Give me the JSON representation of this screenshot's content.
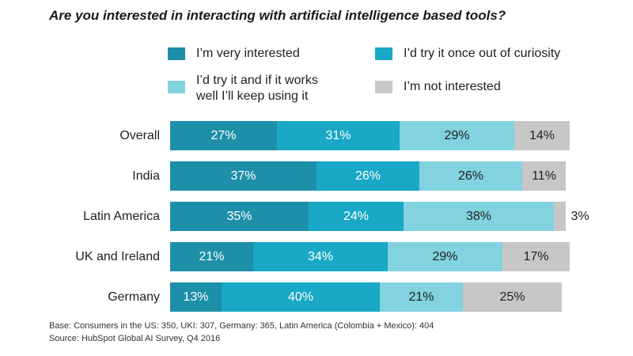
{
  "chart_data": {
    "type": "bar",
    "orientation": "horizontal",
    "stacked": true,
    "title": "Are you interested in interacting with artificial intelligence based tools?",
    "categories": [
      "Overall",
      "India",
      "Latin America",
      "UK and Ireland",
      "Germany"
    ],
    "series": [
      {
        "name": "I’m very interested",
        "color": "#1E8FA8",
        "values": [
          27,
          37,
          35,
          21,
          13
        ],
        "labels": [
          "27%",
          "37%",
          "35%",
          "21%",
          "13%"
        ]
      },
      {
        "name": "I’d try it once out of curiosity",
        "color": "#19A8C5",
        "values": [
          31,
          26,
          24,
          34,
          40
        ],
        "labels": [
          "31%",
          "26%",
          "24%",
          "34%",
          "40%"
        ]
      },
      {
        "name": "I’d try it and if it works\nwell I’ll keep using it",
        "color": "#82D2E0",
        "values": [
          29,
          26,
          38,
          29,
          21
        ],
        "labels": [
          "29%",
          "26%",
          "38%",
          "29%",
          "21%"
        ]
      },
      {
        "name": "I’m not interested",
        "color": "#C7C7C7",
        "values": [
          14,
          11,
          3,
          17,
          25
        ],
        "labels": [
          "14%",
          "11%",
          "3%",
          "17%",
          "25%"
        ]
      }
    ],
    "xlim": [
      0,
      100
    ],
    "grid": false,
    "legend_position": "top"
  },
  "footnotes": {
    "base": "Base: Consumers in the US: 350, UKI: 307, Germany: 365, Latin America (Colombia + Mexico): 404",
    "source": "Source: HubSpot Global AI Survey, Q4 2016"
  }
}
